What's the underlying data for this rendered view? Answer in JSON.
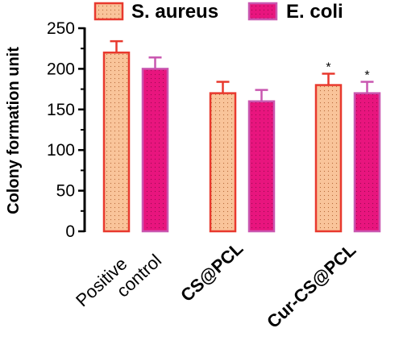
{
  "chart_data": {
    "type": "bar",
    "ylabel": "Colony formation unit",
    "ylim": [
      0,
      250
    ],
    "yticks": [
      0,
      50,
      100,
      150,
      200,
      250
    ],
    "categories": [
      {
        "lines": [
          "Positive",
          "control"
        ],
        "bold": false
      },
      {
        "lines": [
          "CS@PCL"
        ],
        "bold": true
      },
      {
        "lines": [
          "Cur-CS@PCL"
        ],
        "bold": true
      }
    ],
    "series": [
      {
        "name": "S. aureus",
        "fill": "#f9c49a",
        "stroke": "#e8392e",
        "values": [
          220,
          170,
          180
        ],
        "errors": [
          14,
          14,
          14
        ],
        "significance": [
          "",
          "",
          "*"
        ]
      },
      {
        "name": "E. coli",
        "fill": "#e8157e",
        "stroke": "#c957b0",
        "values": [
          200,
          160,
          170
        ],
        "errors": [
          14,
          14,
          14
        ],
        "significance": [
          "",
          "",
          "*"
        ]
      }
    ],
    "legend_position": "top",
    "grid": false
  }
}
